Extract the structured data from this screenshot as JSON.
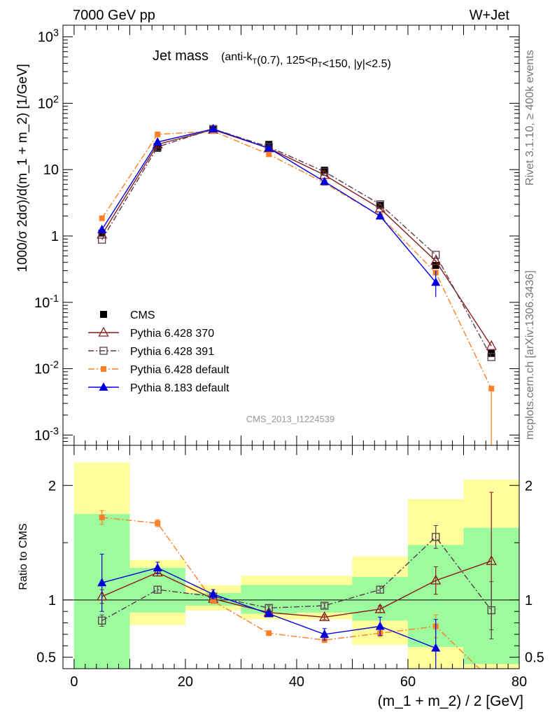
{
  "header": {
    "energy": "7000 GeV pp",
    "process": "W+Jet"
  },
  "side_labels": {
    "rivet": "Rivet 3.1.10, ≥ 400k events",
    "mcplots": "mcplots.cern.ch [arXiv:1306.3436]"
  },
  "watermark": "CMS_2013_I1224539",
  "title_main": "Jet mass",
  "title_detail": "(anti-kT(0.7), 125<pT<150, |y|<2.5)",
  "colors": {
    "cms": "#000000",
    "p370": "#8b1a1a",
    "p391": "#5a3a4a",
    "pdef": "#ff7f27",
    "p8": "#0000dd",
    "green": "#9cfb9c",
    "yellow": "#fdfd9b"
  },
  "chart_data": [
    {
      "type": "line",
      "xlim": [
        -2,
        80
      ],
      "ylim": [
        0.0007,
        1500
      ],
      "log_y": true,
      "ylabel": "1000/σ 2dσ)/d(m_1 + m_2) [1/GeV]",
      "yticks": [
        {
          "value": 1000,
          "label": "10^3"
        },
        {
          "value": 100,
          "label": "10^2"
        },
        {
          "value": 10,
          "label": "10"
        },
        {
          "value": 1,
          "label": "1"
        },
        {
          "value": 0.1,
          "label": "10^-1"
        },
        {
          "value": 0.01,
          "label": "10^-2"
        },
        {
          "value": 0.001,
          "label": "10^-3"
        }
      ],
      "x": [
        5,
        15,
        25,
        35,
        45,
        55,
        65,
        75
      ],
      "series": [
        {
          "name": "CMS",
          "key": "cms",
          "values": [
            1.1,
            21,
            40,
            24,
            9.8,
            2.9,
            0.36,
            0.017
          ]
        },
        {
          "name": "Pythia 6.428 370",
          "key": "p370",
          "values": [
            1.05,
            24,
            40,
            21,
            8.3,
            2.6,
            0.42,
            0.022
          ]
        },
        {
          "name": "Pythia 6.428 391",
          "key": "p391",
          "values": [
            0.88,
            22,
            41,
            22,
            9.3,
            3.0,
            0.52,
            0.015
          ]
        },
        {
          "name": "Pythia 6.428 default",
          "key": "pdef",
          "values": [
            1.85,
            34,
            38,
            17,
            6.3,
            2.0,
            0.28,
            0.005
          ]
        },
        {
          "name": "Pythia 8.183 default",
          "key": "p8",
          "values": [
            1.25,
            26,
            41,
            21,
            6.6,
            2.0,
            0.2,
            null
          ]
        }
      ],
      "legend_position": "left-bottom"
    },
    {
      "type": "line",
      "xlim": [
        -2,
        80
      ],
      "ylim": [
        0.4,
        2.35
      ],
      "ylabel": "Ratio to CMS",
      "xlabel": "(m_1 + m_2) / 2 [GeV]",
      "xticks": [
        0,
        20,
        40,
        60,
        80
      ],
      "yticks": [
        0.5,
        1,
        2
      ],
      "x": [
        5,
        15,
        25,
        35,
        45,
        55,
        65,
        75
      ],
      "bins": [
        [
          0,
          10
        ],
        [
          10,
          20
        ],
        [
          20,
          30
        ],
        [
          30,
          40
        ],
        [
          40,
          50
        ],
        [
          50,
          60
        ],
        [
          60,
          70
        ],
        [
          70,
          80
        ]
      ],
      "band_green": [
        [
          0.4,
          1.75
        ],
        [
          0.89,
          1.28
        ],
        [
          0.95,
          1.06
        ],
        [
          0.88,
          1.13
        ],
        [
          0.89,
          1.13
        ],
        [
          0.82,
          1.2
        ],
        [
          0.59,
          1.48
        ],
        [
          0.44,
          1.63
        ]
      ],
      "band_yellow": [
        [
          0.4,
          2.2
        ],
        [
          0.78,
          1.35
        ],
        [
          0.91,
          1.13
        ],
        [
          0.83,
          1.21
        ],
        [
          0.83,
          1.21
        ],
        [
          0.61,
          1.38
        ],
        [
          0.4,
          1.88
        ],
        [
          0.4,
          2.05
        ]
      ],
      "series": [
        {
          "name": "Pythia 6.428 370",
          "key": "p370",
          "values": [
            1.03,
            1.24,
            1.01,
            0.89,
            0.85,
            0.92,
            1.17,
            1.34
          ],
          "errors": [
            0.06,
            0.03,
            0.02,
            0.02,
            0.02,
            0.03,
            0.12,
            0.6
          ]
        },
        {
          "name": "Pythia 6.428 391",
          "key": "p391",
          "values": [
            0.82,
            1.09,
            1.03,
            0.93,
            0.95,
            1.09,
            1.55,
            0.91
          ],
          "errors": [
            0.05,
            0.03,
            0.02,
            0.02,
            0.02,
            0.03,
            0.1,
            0.25
          ]
        },
        {
          "name": "Pythia 6.428 default",
          "key": "pdef",
          "values": [
            1.72,
            1.67,
            0.99,
            0.71,
            0.65,
            0.71,
            0.77,
            0.3
          ],
          "errors": [
            0.06,
            0.03,
            0.02,
            0.02,
            0.02,
            0.03,
            0.1,
            0.1
          ]
        },
        {
          "name": "Pythia 8.183 default",
          "key": "p8",
          "values": [
            1.15,
            1.28,
            1.05,
            0.88,
            0.7,
            0.77,
            0.58,
            null
          ],
          "errors": [
            0.25,
            0.05,
            0.04,
            0.02,
            0.05,
            0.08,
            0.25,
            0
          ]
        }
      ]
    }
  ]
}
